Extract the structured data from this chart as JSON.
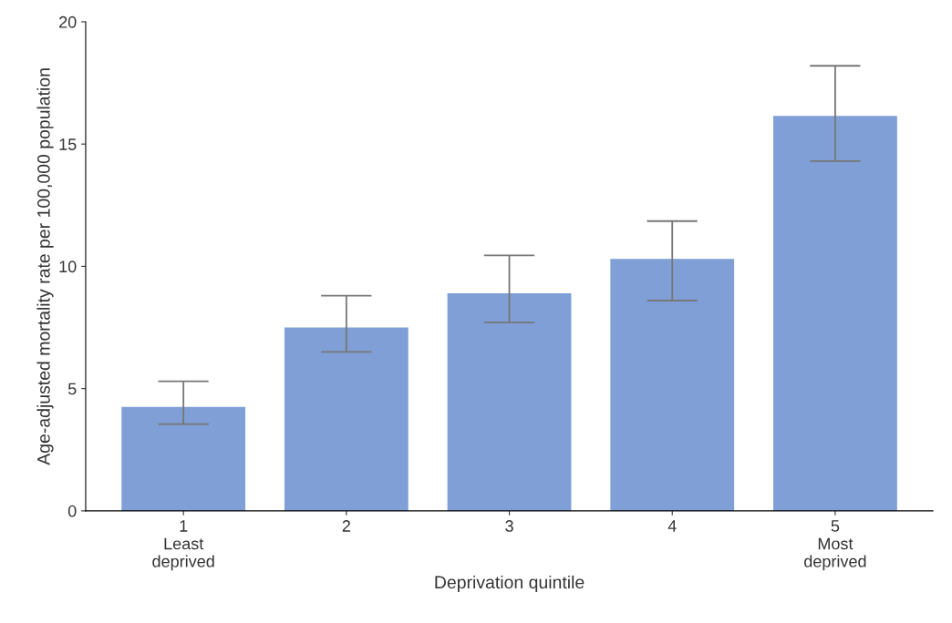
{
  "chart_data": {
    "type": "bar",
    "xlabel": "Deprivation quintile",
    "ylabel": "Age-adjusted mortality rate per 100,000 population",
    "categories": [
      "1\nLeast\ndeprived",
      "2",
      "3",
      "4",
      "5\nMost\ndeprived"
    ],
    "values": [
      4.25,
      7.5,
      8.9,
      10.3,
      16.15
    ],
    "errors": [
      [
        3.55,
        5.3
      ],
      [
        6.5,
        8.8
      ],
      [
        7.7,
        10.45
      ],
      [
        8.6,
        11.85
      ],
      [
        14.3,
        18.2
      ]
    ],
    "color": "#7f9fd6",
    "ylim": [
      0,
      20
    ],
    "yticks": [
      0,
      5,
      10,
      15,
      20
    ],
    "grid": false
  }
}
